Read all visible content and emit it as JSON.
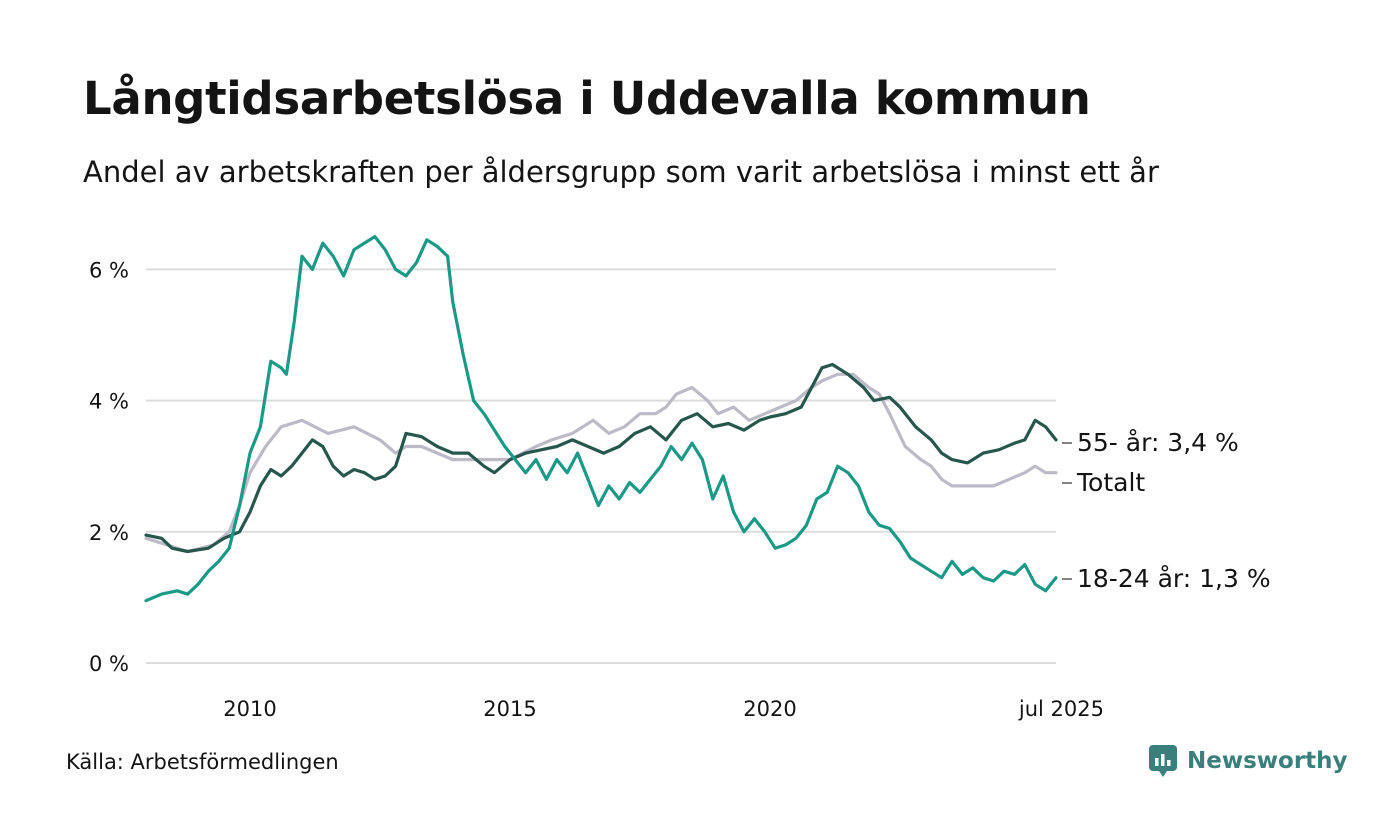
{
  "title": "Långtidsarbetslösa i Uddevalla kommun",
  "subtitle": "Andel av arbetskraften per åldersgrupp som varit arbetslösa i minst ett år",
  "source": "Källa: Arbetsförmedlingen",
  "brand": {
    "name": "Newsworthy",
    "icon": "newsworthy-logo-icon",
    "color": "#3a7f7c"
  },
  "chart_data": {
    "type": "line",
    "ylim": [
      0,
      6.6
    ],
    "xlim": [
      2008.0,
      2025.5
    ],
    "y_ticks": [
      0,
      2,
      4,
      6
    ],
    "y_tick_labels": [
      "0 %",
      "2 %",
      "4 %",
      "6 %"
    ],
    "x_ticks": [
      2010,
      2015,
      2020,
      2025.5
    ],
    "x_tick_labels": [
      "2010",
      "2015",
      "2020",
      "jul 2025"
    ],
    "grid": true,
    "legend": "direct labels at line ends (right)",
    "series": [
      {
        "name": "Totalt",
        "end_label": "Totalt",
        "color": "#bdbac8",
        "points": [
          [
            2008.0,
            1.9
          ],
          [
            2008.4,
            1.8
          ],
          [
            2008.8,
            1.7
          ],
          [
            2009.3,
            1.8
          ],
          [
            2009.6,
            2.0
          ],
          [
            2009.8,
            2.4
          ],
          [
            2010.0,
            2.9
          ],
          [
            2010.3,
            3.3
          ],
          [
            2010.6,
            3.6
          ],
          [
            2011.0,
            3.7
          ],
          [
            2011.5,
            3.5
          ],
          [
            2012.0,
            3.6
          ],
          [
            2012.5,
            3.4
          ],
          [
            2012.8,
            3.2
          ],
          [
            2013.0,
            3.3
          ],
          [
            2013.3,
            3.3
          ],
          [
            2013.6,
            3.2
          ],
          [
            2013.9,
            3.1
          ],
          [
            2014.5,
            3.1
          ],
          [
            2015.0,
            3.1
          ],
          [
            2015.5,
            3.3
          ],
          [
            2015.8,
            3.4
          ],
          [
            2016.2,
            3.5
          ],
          [
            2016.6,
            3.7
          ],
          [
            2016.9,
            3.5
          ],
          [
            2017.2,
            3.6
          ],
          [
            2017.5,
            3.8
          ],
          [
            2017.8,
            3.8
          ],
          [
            2018.0,
            3.9
          ],
          [
            2018.2,
            4.1
          ],
          [
            2018.5,
            4.2
          ],
          [
            2018.8,
            4.0
          ],
          [
            2019.0,
            3.8
          ],
          [
            2019.3,
            3.9
          ],
          [
            2019.6,
            3.7
          ],
          [
            2019.9,
            3.8
          ],
          [
            2020.2,
            3.9
          ],
          [
            2020.5,
            4.0
          ],
          [
            2020.8,
            4.2
          ],
          [
            2021.0,
            4.3
          ],
          [
            2021.3,
            4.4
          ],
          [
            2021.6,
            4.4
          ],
          [
            2021.9,
            4.2
          ],
          [
            2022.1,
            4.1
          ],
          [
            2022.3,
            3.8
          ],
          [
            2022.6,
            3.3
          ],
          [
            2022.9,
            3.1
          ],
          [
            2023.1,
            3.0
          ],
          [
            2023.3,
            2.8
          ],
          [
            2023.5,
            2.7
          ],
          [
            2024.0,
            2.7
          ],
          [
            2024.3,
            2.7
          ],
          [
            2024.6,
            2.8
          ],
          [
            2024.9,
            2.9
          ],
          [
            2025.1,
            3.0
          ],
          [
            2025.3,
            2.9
          ],
          [
            2025.5,
            2.9
          ]
        ]
      },
      {
        "name": "55- år",
        "end_label": "55- år: 3,4 %",
        "color": "#27574c",
        "points": [
          [
            2008.0,
            1.95
          ],
          [
            2008.3,
            1.9
          ],
          [
            2008.5,
            1.75
          ],
          [
            2008.8,
            1.7
          ],
          [
            2009.2,
            1.75
          ],
          [
            2009.5,
            1.9
          ],
          [
            2009.8,
            2.0
          ],
          [
            2010.0,
            2.3
          ],
          [
            2010.2,
            2.7
          ],
          [
            2010.4,
            2.95
          ],
          [
            2010.6,
            2.85
          ],
          [
            2010.8,
            3.0
          ],
          [
            2011.0,
            3.2
          ],
          [
            2011.2,
            3.4
          ],
          [
            2011.4,
            3.3
          ],
          [
            2011.6,
            3.0
          ],
          [
            2011.8,
            2.85
          ],
          [
            2012.0,
            2.95
          ],
          [
            2012.2,
            2.9
          ],
          [
            2012.4,
            2.8
          ],
          [
            2012.6,
            2.85
          ],
          [
            2012.8,
            3.0
          ],
          [
            2013.0,
            3.5
          ],
          [
            2013.3,
            3.45
          ],
          [
            2013.6,
            3.3
          ],
          [
            2013.9,
            3.2
          ],
          [
            2014.2,
            3.2
          ],
          [
            2014.5,
            3.0
          ],
          [
            2014.7,
            2.9
          ],
          [
            2015.0,
            3.1
          ],
          [
            2015.3,
            3.2
          ],
          [
            2015.6,
            3.25
          ],
          [
            2015.9,
            3.3
          ],
          [
            2016.2,
            3.4
          ],
          [
            2016.5,
            3.3
          ],
          [
            2016.8,
            3.2
          ],
          [
            2017.1,
            3.3
          ],
          [
            2017.4,
            3.5
          ],
          [
            2017.7,
            3.6
          ],
          [
            2018.0,
            3.4
          ],
          [
            2018.3,
            3.7
          ],
          [
            2018.6,
            3.8
          ],
          [
            2018.9,
            3.6
          ],
          [
            2019.2,
            3.65
          ],
          [
            2019.5,
            3.55
          ],
          [
            2019.8,
            3.7
          ],
          [
            2020.0,
            3.75
          ],
          [
            2020.3,
            3.8
          ],
          [
            2020.6,
            3.9
          ],
          [
            2020.8,
            4.2
          ],
          [
            2021.0,
            4.5
          ],
          [
            2021.2,
            4.55
          ],
          [
            2021.5,
            4.4
          ],
          [
            2021.8,
            4.2
          ],
          [
            2022.0,
            4.0
          ],
          [
            2022.3,
            4.05
          ],
          [
            2022.5,
            3.9
          ],
          [
            2022.8,
            3.6
          ],
          [
            2023.1,
            3.4
          ],
          [
            2023.3,
            3.2
          ],
          [
            2023.5,
            3.1
          ],
          [
            2023.8,
            3.05
          ],
          [
            2024.1,
            3.2
          ],
          [
            2024.4,
            3.25
          ],
          [
            2024.7,
            3.35
          ],
          [
            2024.9,
            3.4
          ],
          [
            2025.1,
            3.7
          ],
          [
            2025.3,
            3.6
          ],
          [
            2025.5,
            3.4
          ]
        ]
      },
      {
        "name": "18-24 år",
        "end_label": "18-24 år: 1,3 %",
        "color": "#1a9a86",
        "points": [
          [
            2008.0,
            0.95
          ],
          [
            2008.3,
            1.05
          ],
          [
            2008.6,
            1.1
          ],
          [
            2008.8,
            1.05
          ],
          [
            2009.0,
            1.2
          ],
          [
            2009.2,
            1.4
          ],
          [
            2009.4,
            1.55
          ],
          [
            2009.6,
            1.75
          ],
          [
            2009.8,
            2.4
          ],
          [
            2010.0,
            3.2
          ],
          [
            2010.2,
            3.6
          ],
          [
            2010.3,
            4.1
          ],
          [
            2010.4,
            4.6
          ],
          [
            2010.6,
            4.5
          ],
          [
            2010.7,
            4.4
          ],
          [
            2010.85,
            5.2
          ],
          [
            2011.0,
            6.2
          ],
          [
            2011.2,
            6.0
          ],
          [
            2011.4,
            6.4
          ],
          [
            2011.6,
            6.2
          ],
          [
            2011.8,
            5.9
          ],
          [
            2012.0,
            6.3
          ],
          [
            2012.2,
            6.4
          ],
          [
            2012.4,
            6.5
          ],
          [
            2012.6,
            6.3
          ],
          [
            2012.8,
            6.0
          ],
          [
            2013.0,
            5.9
          ],
          [
            2013.2,
            6.1
          ],
          [
            2013.4,
            6.45
          ],
          [
            2013.6,
            6.35
          ],
          [
            2013.8,
            6.2
          ],
          [
            2013.9,
            5.5
          ],
          [
            2014.1,
            4.7
          ],
          [
            2014.3,
            4.0
          ],
          [
            2014.5,
            3.8
          ],
          [
            2014.7,
            3.55
          ],
          [
            2014.9,
            3.3
          ],
          [
            2015.1,
            3.1
          ],
          [
            2015.3,
            2.9
          ],
          [
            2015.5,
            3.1
          ],
          [
            2015.7,
            2.8
          ],
          [
            2015.9,
            3.1
          ],
          [
            2016.1,
            2.9
          ],
          [
            2016.3,
            3.2
          ],
          [
            2016.5,
            2.8
          ],
          [
            2016.7,
            2.4
          ],
          [
            2016.9,
            2.7
          ],
          [
            2017.1,
            2.5
          ],
          [
            2017.3,
            2.75
          ],
          [
            2017.5,
            2.6
          ],
          [
            2017.7,
            2.8
          ],
          [
            2017.9,
            3.0
          ],
          [
            2018.1,
            3.3
          ],
          [
            2018.3,
            3.1
          ],
          [
            2018.5,
            3.35
          ],
          [
            2018.7,
            3.1
          ],
          [
            2018.9,
            2.5
          ],
          [
            2019.1,
            2.85
          ],
          [
            2019.3,
            2.3
          ],
          [
            2019.5,
            2.0
          ],
          [
            2019.7,
            2.2
          ],
          [
            2019.9,
            2.0
          ],
          [
            2020.1,
            1.75
          ],
          [
            2020.3,
            1.8
          ],
          [
            2020.5,
            1.9
          ],
          [
            2020.7,
            2.1
          ],
          [
            2020.9,
            2.5
          ],
          [
            2021.1,
            2.6
          ],
          [
            2021.3,
            3.0
          ],
          [
            2021.5,
            2.9
          ],
          [
            2021.7,
            2.7
          ],
          [
            2021.9,
            2.3
          ],
          [
            2022.1,
            2.1
          ],
          [
            2022.3,
            2.05
          ],
          [
            2022.5,
            1.85
          ],
          [
            2022.7,
            1.6
          ],
          [
            2022.9,
            1.5
          ],
          [
            2023.1,
            1.4
          ],
          [
            2023.3,
            1.3
          ],
          [
            2023.5,
            1.55
          ],
          [
            2023.7,
            1.35
          ],
          [
            2023.9,
            1.45
          ],
          [
            2024.1,
            1.3
          ],
          [
            2024.3,
            1.25
          ],
          [
            2024.5,
            1.4
          ],
          [
            2024.7,
            1.35
          ],
          [
            2024.9,
            1.5
          ],
          [
            2025.1,
            1.2
          ],
          [
            2025.3,
            1.1
          ],
          [
            2025.5,
            1.3
          ]
        ]
      }
    ]
  }
}
